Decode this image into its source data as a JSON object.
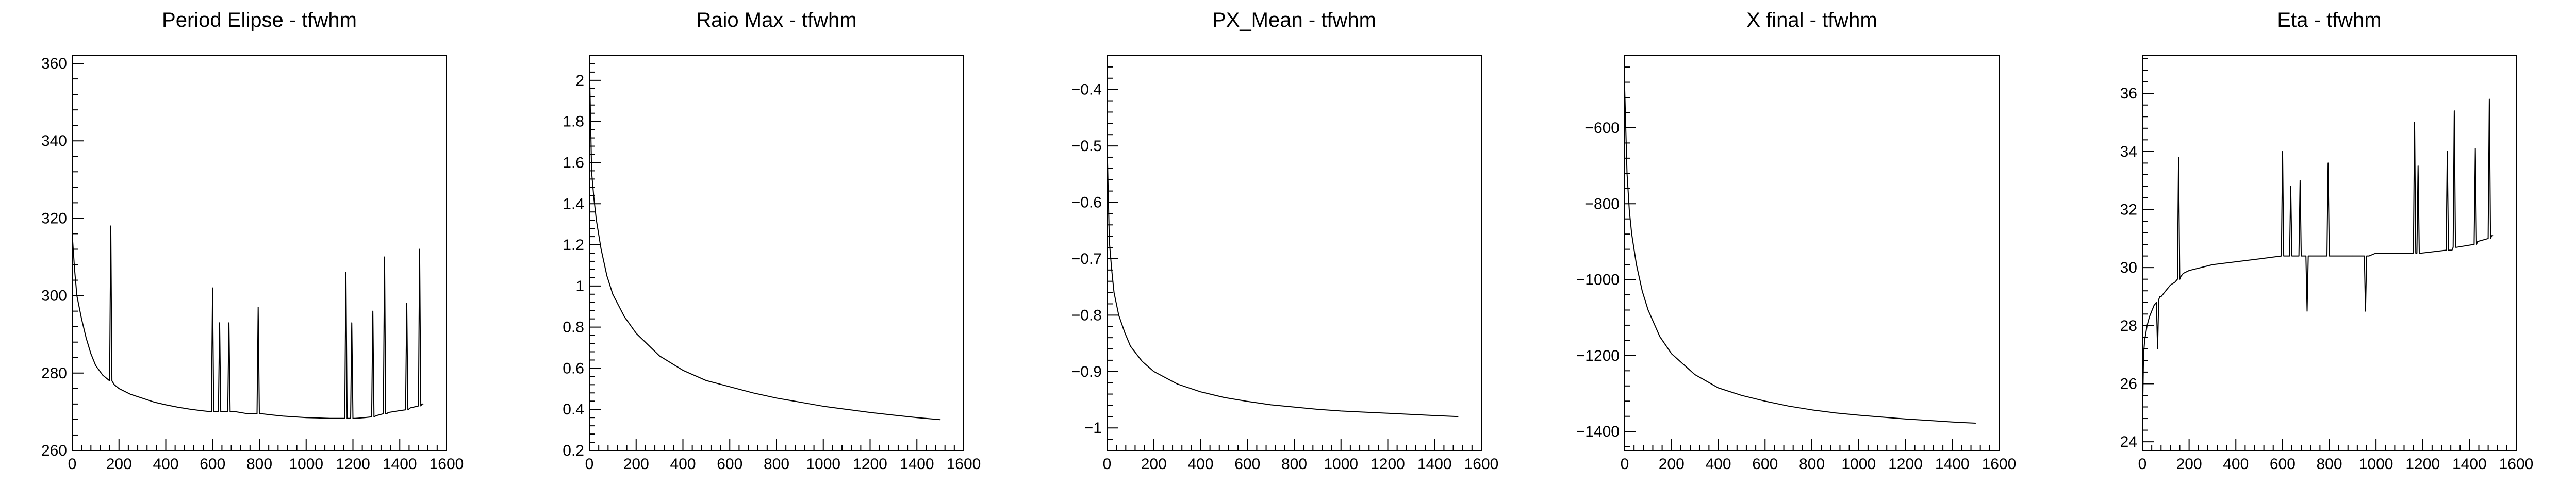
{
  "chart_data": [
    {
      "type": "line",
      "title": "Period Elipse - tfwhm",
      "xlabel": "",
      "ylabel": "",
      "xlim": [
        0,
        1600
      ],
      "ylim": [
        260,
        362
      ],
      "xticks": [
        0,
        200,
        400,
        600,
        800,
        1000,
        1200,
        1400,
        1600
      ],
      "yticks": [
        260,
        280,
        300,
        320,
        340,
        360
      ],
      "grid": false,
      "series": [
        {
          "x": [
            0,
            10,
            20,
            40,
            60,
            80,
            100,
            130,
            160,
            165,
            170,
            175,
            180,
            200,
            250,
            300,
            350,
            400,
            450,
            500,
            550,
            595,
            600,
            605,
            610,
            625,
            630,
            635,
            640,
            665,
            670,
            675,
            680,
            700,
            750,
            790,
            795,
            800,
            805,
            810,
            850,
            900,
            950,
            1000,
            1050,
            1100,
            1150,
            1165,
            1170,
            1175,
            1180,
            1190,
            1195,
            1200,
            1205,
            1210,
            1250,
            1280,
            1285,
            1290,
            1300,
            1330,
            1335,
            1340,
            1345,
            1350,
            1400,
            1425,
            1430,
            1435,
            1445,
            1480,
            1485,
            1490,
            1495,
            1500
          ],
          "y": [
            316,
            307,
            300,
            294,
            289,
            285,
            282,
            279.5,
            278,
            318,
            278,
            277.5,
            277,
            276,
            274.5,
            273.5,
            272.5,
            271.8,
            271.2,
            270.7,
            270.3,
            270,
            302,
            270,
            270,
            270,
            293,
            270,
            270,
            270,
            293,
            270,
            270,
            270,
            269.5,
            269.5,
            297,
            269.5,
            269.5,
            269.5,
            269.2,
            268.9,
            268.7,
            268.5,
            268.4,
            268.3,
            268.3,
            268.3,
            306,
            268.3,
            268.3,
            268.3,
            293,
            268.3,
            268.3,
            268.3,
            268.5,
            268.7,
            296,
            268.7,
            269,
            269.5,
            310,
            269.5,
            269.5,
            269.8,
            270.3,
            270.5,
            298,
            270.5,
            271,
            271.5,
            312,
            271.5,
            272,
            272
          ]
        }
      ]
    },
    {
      "type": "line",
      "title": "Raio Max - tfwhm",
      "xlabel": "",
      "ylabel": "",
      "xlim": [
        0,
        1600
      ],
      "ylim": [
        0.2,
        2.12
      ],
      "xticks": [
        0,
        200,
        400,
        600,
        800,
        1000,
        1200,
        1400,
        1600
      ],
      "yticks": [
        0.2,
        0.4,
        0.6,
        0.8,
        1,
        1.2,
        1.4,
        1.6,
        1.8,
        2
      ],
      "yticklabels": [
        "0.2",
        "0.4",
        "0.6",
        "0.8",
        "1",
        "1.2",
        "1.4",
        "1.6",
        "1.8",
        "2"
      ],
      "grid": false,
      "series": [
        {
          "x": [
            0,
            10,
            20,
            30,
            50,
            75,
            100,
            150,
            200,
            300,
            400,
            500,
            600,
            700,
            800,
            900,
            1000,
            1100,
            1200,
            1300,
            1400,
            1500
          ],
          "y": [
            2.1,
            1.55,
            1.42,
            1.32,
            1.18,
            1.05,
            0.96,
            0.85,
            0.77,
            0.66,
            0.59,
            0.54,
            0.51,
            0.48,
            0.455,
            0.435,
            0.415,
            0.4,
            0.385,
            0.372,
            0.36,
            0.35
          ]
        }
      ]
    },
    {
      "type": "line",
      "title": "PX_Mean - tfwhm",
      "xlabel": "",
      "ylabel": "",
      "xlim": [
        0,
        1600
      ],
      "ylim": [
        -1.04,
        -0.34
      ],
      "xticks": [
        0,
        200,
        400,
        600,
        800,
        1000,
        1200,
        1400,
        1600
      ],
      "yticks": [
        -1,
        -0.9,
        -0.8,
        -0.7,
        -0.6,
        -0.5,
        -0.4
      ],
      "yticklabels": [
        "−1",
        "−0.9",
        "−0.8",
        "−0.7",
        "−0.6",
        "−0.5",
        "−0.4"
      ],
      "grid": false,
      "series": [
        {
          "x": [
            0,
            10,
            20,
            30,
            50,
            75,
            100,
            150,
            200,
            300,
            400,
            500,
            600,
            700,
            800,
            900,
            1000,
            1100,
            1200,
            1300,
            1400,
            1500
          ],
          "y": [
            -0.49,
            -0.67,
            -0.72,
            -0.76,
            -0.8,
            -0.83,
            -0.855,
            -0.882,
            -0.9,
            -0.922,
            -0.936,
            -0.946,
            -0.953,
            -0.959,
            -0.963,
            -0.967,
            -0.97,
            -0.972,
            -0.974,
            -0.976,
            -0.978,
            -0.98
          ]
        }
      ]
    },
    {
      "type": "line",
      "title": "X final - tfwhm",
      "xlabel": "",
      "ylabel": "",
      "xlim": [
        0,
        1600
      ],
      "ylim": [
        -1450,
        -410
      ],
      "xticks": [
        0,
        200,
        400,
        600,
        800,
        1000,
        1200,
        1400,
        1600
      ],
      "yticks": [
        -1400,
        -1200,
        -1000,
        -800,
        -600
      ],
      "yticklabels": [
        "−1400",
        "−1200",
        "−1000",
        "−800",
        "−600"
      ],
      "grid": false,
      "series": [
        {
          "x": [
            0,
            10,
            20,
            30,
            50,
            75,
            100,
            150,
            200,
            300,
            400,
            500,
            600,
            700,
            800,
            900,
            1000,
            1100,
            1200,
            1300,
            1400,
            1500
          ],
          "y": [
            -500,
            -720,
            -820,
            -880,
            -960,
            -1030,
            -1080,
            -1150,
            -1195,
            -1250,
            -1285,
            -1305,
            -1320,
            -1333,
            -1343,
            -1351,
            -1357,
            -1362,
            -1367,
            -1371,
            -1375,
            -1378
          ]
        }
      ]
    },
    {
      "type": "line",
      "title": "Eta - tfwhm",
      "xlabel": "",
      "ylabel": "",
      "xlim": [
        0,
        1600
      ],
      "ylim": [
        23.7,
        37.3
      ],
      "xticks": [
        0,
        200,
        400,
        600,
        800,
        1000,
        1200,
        1400,
        1600
      ],
      "yticks": [
        24,
        26,
        28,
        30,
        32,
        34,
        36
      ],
      "grid": false,
      "series": [
        {
          "x": [
            0,
            5,
            10,
            20,
            30,
            40,
            50,
            60,
            65,
            70,
            75,
            80,
            100,
            120,
            140,
            150,
            155,
            160,
            165,
            175,
            200,
            300,
            400,
            500,
            595,
            600,
            605,
            630,
            635,
            640,
            670,
            675,
            680,
            700,
            705,
            710,
            715,
            720,
            790,
            795,
            800,
            805,
            810,
            900,
            950,
            955,
            960,
            965,
            970,
            1000,
            1100,
            1160,
            1165,
            1170,
            1175,
            1180,
            1185,
            1190,
            1195,
            1300,
            1305,
            1310,
            1315,
            1325,
            1330,
            1335,
            1340,
            1345,
            1420,
            1425,
            1430,
            1435,
            1480,
            1485,
            1490,
            1495,
            1500
          ],
          "y": [
            24.5,
            27,
            27.5,
            28,
            28.3,
            28.5,
            28.7,
            28.8,
            27.2,
            28.9,
            29,
            29,
            29.2,
            29.4,
            29.5,
            29.6,
            33.8,
            29.6,
            29.7,
            29.8,
            29.9,
            30.1,
            30.2,
            30.3,
            30.4,
            34,
            30.4,
            30.4,
            32.8,
            30.4,
            30.4,
            33,
            30.4,
            30.4,
            28.5,
            30.4,
            30.4,
            30.4,
            30.4,
            33.6,
            30.4,
            30.4,
            30.4,
            30.4,
            30.4,
            28.5,
            30.4,
            30.4,
            30.4,
            30.5,
            30.5,
            30.5,
            35,
            30.5,
            30.5,
            33.5,
            30.5,
            30.5,
            30.5,
            30.6,
            34,
            30.6,
            30.6,
            30.6,
            30.7,
            35.4,
            30.7,
            30.7,
            30.8,
            34.1,
            30.8,
            30.9,
            31,
            35.8,
            31,
            31.1,
            31.1
          ]
        }
      ]
    }
  ]
}
